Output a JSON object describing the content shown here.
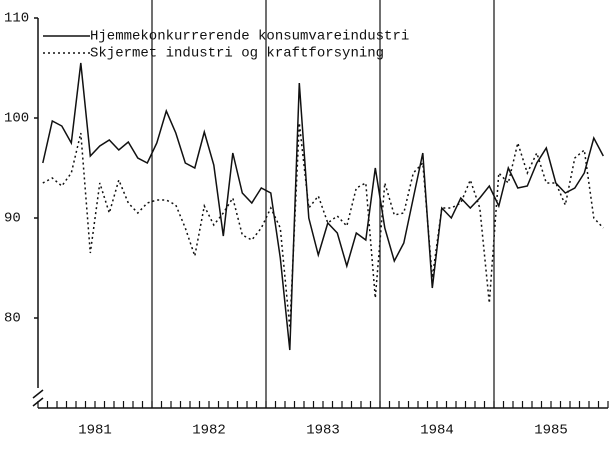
{
  "chart_data": {
    "type": "line",
    "categories": [
      null,
      null,
      null,
      null,
      null,
      null,
      "1981",
      null,
      null,
      null,
      null,
      null,
      null,
      null,
      null,
      null,
      null,
      null,
      "1982",
      null,
      null,
      null,
      null,
      null,
      null,
      null,
      null,
      null,
      null,
      null,
      "1983",
      null,
      null,
      null,
      null,
      null,
      null,
      null,
      null,
      null,
      null,
      null,
      "1984",
      null,
      null,
      null,
      null,
      null,
      null,
      null,
      null,
      null,
      null,
      null,
      "1985",
      null,
      null,
      null,
      null,
      null
    ],
    "series": [
      {
        "name": "Hjemmekonkurrerende konsumvareindustri",
        "color": "#111111",
        "style": "solid",
        "values": [
          95.5,
          99.7,
          99.2,
          97.5,
          105.5,
          96.2,
          97.2,
          97.8,
          96.8,
          97.6,
          96.0,
          95.5,
          97.5,
          100.7,
          98.5,
          95.5,
          95.0,
          98.6,
          95.3,
          88.2,
          96.5,
          92.5,
          91.5,
          93.0,
          92.5,
          86.0,
          76.8,
          103.5,
          90.0,
          86.3,
          89.5,
          88.5,
          85.2,
          88.5,
          87.8,
          95.0,
          89.0,
          85.7,
          87.5,
          92.0,
          96.5,
          83.0,
          91.0,
          90.0,
          92.0,
          91.0,
          92.0,
          93.2,
          91.2,
          95.0,
          93.0,
          93.2,
          95.5,
          97.0,
          93.5,
          92.5,
          93.0,
          94.5,
          98.0,
          96.2
        ]
      },
      {
        "name": "Skjermet industri og kraftforsyning",
        "color": "#111111",
        "style": "dotted",
        "values": [
          93.5,
          94.0,
          93.2,
          94.5,
          98.5,
          86.5,
          93.5,
          90.5,
          93.8,
          91.5,
          90.5,
          91.5,
          91.8,
          91.8,
          91.3,
          89.0,
          86.2,
          91.2,
          89.3,
          90.5,
          92.0,
          88.3,
          87.8,
          89.0,
          91.0,
          89.0,
          79.0,
          99.5,
          91.0,
          92.2,
          89.5,
          90.2,
          89.2,
          93.0,
          93.5,
          82.0,
          93.5,
          90.3,
          90.5,
          94.5,
          95.5,
          84.0,
          91.0,
          91.0,
          91.5,
          93.8,
          91.0,
          81.5,
          94.5,
          93.5,
          97.5,
          94.5,
          96.5,
          93.5,
          93.5,
          91.3,
          96.0,
          96.8,
          90.0,
          89.0
        ]
      }
    ],
    "ylim": [
      71,
      110
    ],
    "yticks": [
      80,
      90,
      100,
      110
    ],
    "legend": "upper left"
  }
}
